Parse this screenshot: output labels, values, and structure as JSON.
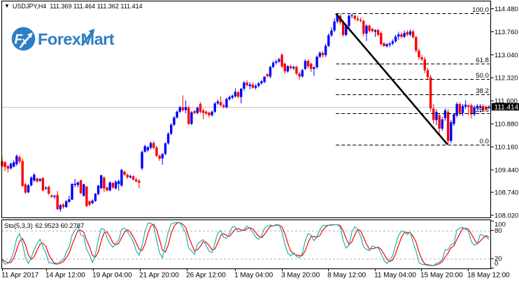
{
  "info": {
    "dropdown_icon": "▼",
    "symbol_period": "USDJPY,H4",
    "ohlc": "111.369 111.464 111.362 111.414",
    "open": "111.369",
    "high": "111.464",
    "low": "111.362",
    "close": "111.414"
  },
  "logo": {
    "icon_text": "Fx",
    "icon_f": "F",
    "icon_x": "x",
    "wordmark": "ForexMart",
    "brand_color": "#2e7fc3"
  },
  "price_axis": {
    "labels": [
      {
        "text": "114.480",
        "value": 114.48
      },
      {
        "text": "113.760",
        "value": 113.76
      },
      {
        "text": "113.040",
        "value": 113.04
      },
      {
        "text": "112.320",
        "value": 112.32
      },
      {
        "text": "111.600",
        "value": 111.6
      },
      {
        "text": "110.880",
        "value": 110.88
      },
      {
        "text": "110.160",
        "value": 110.16
      },
      {
        "text": "109.440",
        "value": 109.44
      },
      {
        "text": "108.740",
        "value": 108.74
      },
      {
        "text": "108.020",
        "value": 108.02
      }
    ],
    "current_price": "111.414",
    "current_price_value": 111.414
  },
  "time_axis": {
    "ticks": [
      {
        "label": "11 Apr 2017",
        "bar": 0.1
      },
      {
        "label": "14 Apr 12:00",
        "bar": 15.1
      },
      {
        "label": "19 Apr 04:00",
        "bar": 31.2
      },
      {
        "label": "21 Apr 20:00",
        "bar": 47.3
      },
      {
        "label": "26 Apr 12:00",
        "bar": 63.3
      },
      {
        "label": "1 May 04:00",
        "bar": 79.9
      },
      {
        "label": "3 May 20:00",
        "bar": 96.0
      },
      {
        "label": "8 May 12:00",
        "bar": 111.8
      },
      {
        "label": "11 May 04:00",
        "bar": 127.9
      },
      {
        "label": "15 May 20:00",
        "bar": 143.7
      },
      {
        "label": "18 May 12:00",
        "bar": 159.8
      }
    ]
  },
  "fibonacci": {
    "high_price": 114.329,
    "low_price": 110.236,
    "start_bar": 114.5,
    "levels": [
      {
        "label": "100.0",
        "pct": 100.0
      },
      {
        "label": "61.8",
        "pct": 61.8
      },
      {
        "label": "50.0",
        "pct": 50.0
      },
      {
        "label": "38.2",
        "pct": 38.2
      },
      {
        "label": "23.6",
        "pct": 23.6
      },
      {
        "label": "0.0",
        "pct": 0.0
      }
    ]
  },
  "trend_line": {
    "from": {
      "bar": 114.5,
      "price": 114.329
    },
    "to": {
      "bar": 152.8,
      "price": 110.236
    },
    "color": "#000000"
  },
  "indicator": {
    "name": "Sto(5,3,3)",
    "values": "62.9523 60.2787",
    "k_value": "62.9523",
    "d_value": "60.2787",
    "k_period": 5,
    "d_period": 3,
    "slowing": 3,
    "levels": [
      80,
      20
    ],
    "axis_labels": [
      {
        "text": "100",
        "value": 100
      },
      {
        "text": "80",
        "value": 80
      },
      {
        "text": "20",
        "value": 20
      },
      {
        "text": "0",
        "value": 0
      }
    ],
    "k_color": "#20b2aa",
    "d_color": "#fd0000"
  },
  "chart_data": {
    "type": "candlestick",
    "symbol": "USDJPY",
    "timeframe": "H4",
    "title": "USDJPY,H4",
    "bull_color": "#0000fd",
    "bear_color": "#fd0000",
    "current_price_line_color": "#c8c8c8",
    "ylim": [
      108.02,
      114.48
    ],
    "lead_in_bars": [
      [
        110.85,
        110.94,
        110.55,
        110.62
      ],
      [
        110.62,
        110.73,
        110.34,
        110.42
      ],
      [
        110.42,
        110.48,
        109.9,
        110.05
      ],
      [
        110.05,
        110.33,
        109.93,
        110.25
      ],
      [
        110.25,
        110.32,
        109.56,
        109.68
      ]
    ],
    "bars": [
      [
        109.72,
        109.85,
        109.51,
        109.56
      ],
      [
        109.68,
        109.72,
        109.4,
        109.53
      ],
      [
        109.56,
        109.59,
        109.36,
        109.48
      ],
      [
        109.49,
        109.66,
        109.45,
        109.64
      ],
      [
        109.54,
        109.74,
        109.52,
        109.68
      ],
      [
        109.62,
        109.92,
        109.57,
        109.88
      ],
      [
        109.84,
        109.9,
        109.64,
        109.7
      ],
      [
        109.72,
        109.8,
        108.9,
        108.94
      ],
      [
        108.99,
        109.03,
        108.69,
        108.73
      ],
      [
        108.74,
        109.0,
        108.71,
        108.96
      ],
      [
        108.96,
        109.24,
        108.92,
        109.2
      ],
      [
        109.11,
        109.34,
        109.06,
        109.29
      ],
      [
        109.17,
        109.2,
        109.04,
        109.08
      ],
      [
        109.1,
        109.19,
        109.06,
        109.15
      ],
      [
        109.19,
        109.21,
        108.77,
        108.8
      ],
      [
        108.86,
        108.93,
        108.81,
        108.89
      ],
      [
        108.91,
        108.95,
        108.66,
        108.7
      ],
      [
        108.64,
        108.68,
        108.57,
        108.6
      ],
      [
        108.6,
        108.66,
        108.53,
        108.63
      ],
      [
        108.66,
        108.78,
        108.18,
        108.21
      ],
      [
        108.21,
        108.37,
        108.13,
        108.34
      ],
      [
        108.36,
        108.4,
        108.23,
        108.28
      ],
      [
        108.28,
        108.5,
        108.25,
        108.46
      ],
      [
        108.44,
        108.63,
        108.41,
        108.52
      ],
      [
        108.51,
        109.02,
        108.49,
        109.0
      ],
      [
        108.97,
        109.16,
        108.9,
        109.01
      ],
      [
        108.97,
        109.08,
        108.89,
        109.05
      ],
      [
        109.12,
        109.13,
        108.69,
        108.71
      ],
      [
        108.63,
        109.01,
        108.6,
        108.99
      ],
      [
        108.92,
        108.94,
        108.28,
        108.31
      ],
      [
        108.46,
        108.49,
        108.31,
        108.35
      ],
      [
        108.4,
        108.52,
        108.37,
        108.48
      ],
      [
        108.47,
        108.72,
        108.44,
        108.69
      ],
      [
        108.68,
        108.97,
        108.65,
        108.95
      ],
      [
        108.87,
        109.29,
        108.84,
        109.27
      ],
      [
        109.2,
        109.24,
        108.74,
        108.86
      ],
      [
        108.89,
        108.92,
        108.77,
        108.8
      ],
      [
        108.8,
        109.08,
        108.77,
        109.05
      ],
      [
        109.03,
        109.06,
        108.85,
        108.89
      ],
      [
        108.86,
        109.12,
        108.83,
        109.07
      ],
      [
        109.0,
        109.14,
        108.79,
        109.09
      ],
      [
        108.95,
        109.47,
        108.92,
        109.44
      ],
      [
        109.38,
        109.42,
        109.25,
        109.29
      ],
      [
        109.29,
        109.33,
        109.16,
        109.21
      ],
      [
        109.21,
        109.29,
        109.17,
        109.25
      ],
      [
        109.24,
        109.27,
        109.12,
        109.13
      ],
      [
        109.14,
        109.2,
        109.06,
        109.08
      ],
      [
        109.1,
        109.16,
        108.86,
        109.04
      ],
      [
        109.49,
        110.05,
        109.44,
        110.0
      ],
      [
        110.01,
        110.23,
        109.98,
        110.18
      ],
      [
        110.06,
        110.19,
        110.01,
        110.15
      ],
      [
        110.13,
        110.33,
        110.08,
        110.28
      ],
      [
        110.28,
        110.34,
        110.09,
        110.13
      ],
      [
        110.14,
        110.2,
        109.84,
        109.88
      ],
      [
        109.88,
        109.93,
        109.72,
        109.79
      ],
      [
        109.8,
        109.96,
        109.6,
        109.94
      ],
      [
        109.94,
        110.3,
        109.9,
        110.27
      ],
      [
        110.27,
        110.62,
        110.23,
        110.57
      ],
      [
        110.57,
        110.9,
        110.53,
        110.85
      ],
      [
        110.85,
        111.12,
        110.81,
        111.08
      ],
      [
        111.08,
        111.3,
        111.04,
        111.26
      ],
      [
        111.26,
        111.44,
        111.22,
        111.4
      ],
      [
        111.4,
        111.77,
        111.27,
        111.31
      ],
      [
        111.31,
        111.61,
        111.21,
        111.41
      ],
      [
        111.38,
        111.44,
        110.85,
        110.88
      ],
      [
        110.88,
        111.28,
        110.84,
        111.24
      ],
      [
        111.28,
        111.31,
        111.18,
        111.22
      ],
      [
        111.22,
        111.42,
        111.18,
        111.38
      ],
      [
        111.5,
        111.56,
        111.2,
        111.26
      ],
      [
        111.3,
        111.36,
        111.03,
        111.22
      ],
      [
        111.26,
        111.31,
        111.16,
        111.2
      ],
      [
        111.23,
        111.27,
        111.08,
        111.15
      ],
      [
        111.15,
        111.3,
        111.11,
        111.26
      ],
      [
        111.26,
        111.56,
        111.22,
        111.52
      ],
      [
        111.52,
        111.64,
        111.47,
        111.58
      ],
      [
        111.56,
        111.74,
        111.42,
        111.46
      ],
      [
        111.46,
        111.51,
        111.36,
        111.41
      ],
      [
        111.4,
        111.7,
        111.36,
        111.66
      ],
      [
        111.65,
        111.77,
        111.61,
        111.72
      ],
      [
        111.7,
        111.8,
        111.65,
        111.76
      ],
      [
        111.74,
        111.99,
        111.7,
        111.88
      ],
      [
        111.87,
        111.92,
        111.68,
        111.73
      ],
      [
        111.72,
        112.0,
        111.52,
        111.98
      ],
      [
        111.98,
        112.22,
        111.92,
        112.17
      ],
      [
        112.17,
        112.24,
        112.05,
        112.09
      ],
      [
        112.06,
        112.18,
        111.96,
        112.11
      ],
      [
        112.11,
        112.16,
        111.98,
        112.01
      ],
      [
        112.01,
        112.12,
        111.95,
        112.07
      ],
      [
        112.07,
        112.19,
        112.02,
        112.15
      ],
      [
        112.15,
        112.25,
        112.1,
        112.21
      ],
      [
        112.19,
        112.36,
        112.15,
        112.36
      ],
      [
        112.43,
        112.47,
        112.33,
        112.37
      ],
      [
        112.36,
        112.7,
        112.3,
        112.66
      ],
      [
        112.66,
        112.85,
        112.62,
        112.79
      ],
      [
        112.79,
        112.89,
        112.73,
        112.83
      ],
      [
        112.83,
        112.95,
        112.78,
        112.9
      ],
      [
        113.04,
        113.09,
        112.62,
        112.67
      ],
      [
        112.76,
        112.8,
        112.44,
        112.52
      ],
      [
        112.52,
        112.72,
        112.48,
        112.68
      ],
      [
        112.68,
        112.73,
        112.58,
        112.62
      ],
      [
        112.62,
        112.7,
        112.56,
        112.66
      ],
      [
        112.66,
        112.7,
        112.4,
        112.45
      ],
      [
        112.45,
        112.5,
        112.27,
        112.36
      ],
      [
        112.36,
        112.6,
        112.32,
        112.56
      ],
      [
        112.6,
        112.9,
        112.56,
        112.85
      ],
      [
        112.85,
        112.9,
        112.62,
        112.68
      ],
      [
        112.76,
        112.8,
        112.5,
        112.6
      ],
      [
        112.6,
        112.68,
        112.38,
        112.65
      ],
      [
        112.65,
        113.02,
        112.6,
        112.98
      ],
      [
        112.98,
        113.15,
        112.94,
        113.1
      ],
      [
        113.1,
        113.15,
        112.95,
        113.03
      ],
      [
        113.03,
        113.38,
        112.97,
        113.32
      ],
      [
        113.32,
        113.71,
        113.28,
        113.65
      ],
      [
        113.65,
        113.9,
        113.6,
        113.8
      ],
      [
        113.8,
        114.18,
        113.75,
        114.08
      ],
      [
        114.08,
        114.335,
        114.02,
        114.28
      ],
      [
        114.26,
        114.31,
        113.98,
        114.05
      ],
      [
        114.05,
        114.1,
        113.6,
        113.66
      ],
      [
        113.66,
        113.98,
        113.62,
        113.94
      ],
      [
        113.94,
        114.3,
        113.88,
        114.26
      ],
      [
        114.26,
        114.32,
        114.18,
        114.28
      ],
      [
        114.26,
        114.3,
        114.12,
        114.17
      ],
      [
        114.17,
        114.26,
        114.08,
        114.13
      ],
      [
        114.13,
        114.21,
        114.05,
        114.1
      ],
      [
        114.1,
        114.14,
        113.62,
        113.7
      ],
      [
        113.7,
        113.99,
        113.47,
        113.95
      ],
      [
        113.95,
        113.99,
        113.74,
        113.79
      ],
      [
        113.85,
        113.89,
        113.74,
        113.78
      ],
      [
        113.76,
        113.84,
        113.6,
        113.81
      ],
      [
        113.81,
        113.85,
        113.62,
        113.66
      ],
      [
        113.72,
        113.77,
        113.33,
        113.37
      ],
      [
        113.4,
        113.44,
        113.28,
        113.31
      ],
      [
        113.31,
        113.41,
        113.26,
        113.37
      ],
      [
        113.35,
        113.44,
        113.28,
        113.39
      ],
      [
        113.39,
        113.52,
        113.34,
        113.46
      ],
      [
        113.46,
        113.67,
        113.42,
        113.61
      ],
      [
        113.61,
        113.76,
        113.5,
        113.68
      ],
      [
        113.68,
        113.73,
        113.55,
        113.6
      ],
      [
        113.6,
        113.8,
        113.56,
        113.72
      ],
      [
        113.75,
        113.81,
        113.62,
        113.67
      ],
      [
        113.67,
        113.83,
        113.62,
        113.77
      ],
      [
        113.77,
        113.82,
        113.54,
        113.59
      ],
      [
        113.59,
        113.64,
        113.11,
        113.17
      ],
      [
        113.17,
        113.23,
        112.88,
        112.96
      ],
      [
        112.96,
        113.03,
        112.84,
        112.9
      ],
      [
        112.9,
        112.98,
        112.47,
        112.56
      ],
      [
        112.56,
        112.63,
        112.28,
        112.34
      ],
      [
        112.34,
        112.41,
        111.27,
        111.36
      ],
      [
        111.36,
        111.5,
        110.87,
        111.0
      ],
      [
        111.0,
        111.34,
        110.84,
        111.25
      ],
      [
        111.15,
        111.21,
        110.51,
        110.73
      ],
      [
        110.73,
        111.09,
        110.66,
        111.02
      ],
      [
        111.06,
        111.36,
        110.98,
        111.3
      ],
      [
        111.25,
        111.34,
        110.236,
        110.35
      ],
      [
        110.35,
        111.0,
        110.28,
        110.93
      ],
      [
        110.88,
        111.22,
        110.82,
        111.18
      ],
      [
        111.14,
        111.56,
        111.08,
        111.5
      ],
      [
        111.5,
        111.55,
        111.14,
        111.22
      ],
      [
        111.22,
        111.5,
        111.12,
        111.44
      ],
      [
        111.42,
        111.62,
        111.35,
        111.48
      ],
      [
        111.45,
        111.5,
        111.14,
        111.41
      ],
      [
        111.46,
        111.51,
        111.05,
        111.18
      ],
      [
        111.18,
        111.46,
        111.12,
        111.4
      ],
      [
        111.38,
        111.5,
        111.32,
        111.44
      ],
      [
        111.4,
        111.5,
        111.24,
        111.44
      ],
      [
        111.44,
        111.49,
        111.26,
        111.3
      ],
      [
        111.41,
        111.46,
        111.3,
        111.35
      ],
      [
        111.369,
        111.464,
        111.362,
        111.414
      ]
    ]
  }
}
